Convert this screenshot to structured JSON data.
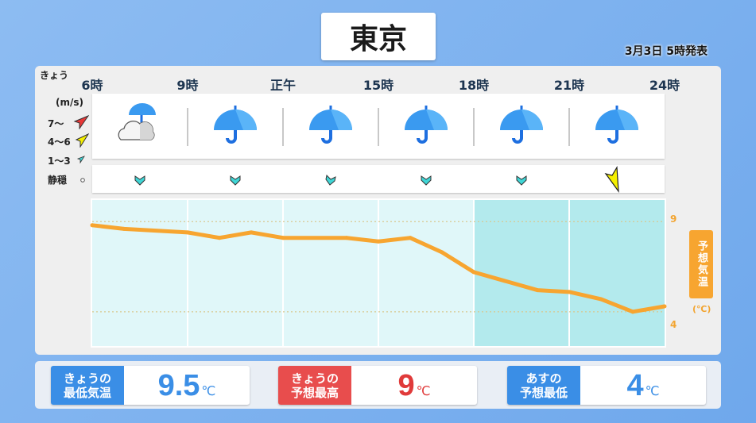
{
  "title": "東京",
  "issued": "3月3日 5時発表",
  "day_label": "きょう",
  "hours": [
    "6時",
    "9時",
    "正午",
    "15時",
    "18時",
    "21時",
    "24時"
  ],
  "legend": {
    "unit": "(m/s)",
    "strong": "7〜",
    "medium": "4〜6",
    "light": "1〜3",
    "calm": "静穏"
  },
  "weather": [
    "cloudy-then-rain",
    "rain",
    "rain",
    "rain",
    "rain",
    "rain"
  ],
  "wind": [
    {
      "level": "1〜3",
      "color": "#3fd6d6"
    },
    {
      "level": "1〜3",
      "color": "#3fd6d6"
    },
    {
      "level": "1〜3",
      "color": "#3fd6d6"
    },
    {
      "level": "1〜3",
      "color": "#3fd6d6"
    },
    {
      "level": "1〜3",
      "color": "#3fd6d6"
    },
    {
      "level": "4〜6",
      "color": "#f5f000"
    }
  ],
  "chart_data": {
    "type": "line",
    "ylabel": "予想気温",
    "yunit": "(℃)",
    "yticks": [
      "9",
      "4"
    ],
    "x": [
      6,
      7,
      9,
      10,
      11,
      12,
      14,
      15,
      16,
      17,
      18,
      20,
      21,
      22,
      23,
      24
    ],
    "values": [
      8.8,
      8.6,
      8.4,
      8.1,
      8.4,
      8.1,
      8.1,
      7.9,
      8.1,
      7.3,
      6.2,
      5.2,
      5.1,
      4.7,
      4.0,
      4.3
    ],
    "xlim": [
      6,
      24
    ],
    "ylim": [
      2.1,
      10.2
    ],
    "line_color": "#f7a530",
    "night_from": 18
  },
  "summary": [
    {
      "label1": "きょうの",
      "label2": "最低気温",
      "value": "9.5",
      "unit": "℃",
      "color": "#3a8ee6"
    },
    {
      "label1": "きょうの",
      "label2": "予想最高",
      "value": "9",
      "unit": "℃",
      "color": "#e84d4d"
    },
    {
      "label1": "あすの",
      "label2": "予想最低",
      "value": "4",
      "unit": "℃",
      "color": "#3a8ee6"
    }
  ]
}
